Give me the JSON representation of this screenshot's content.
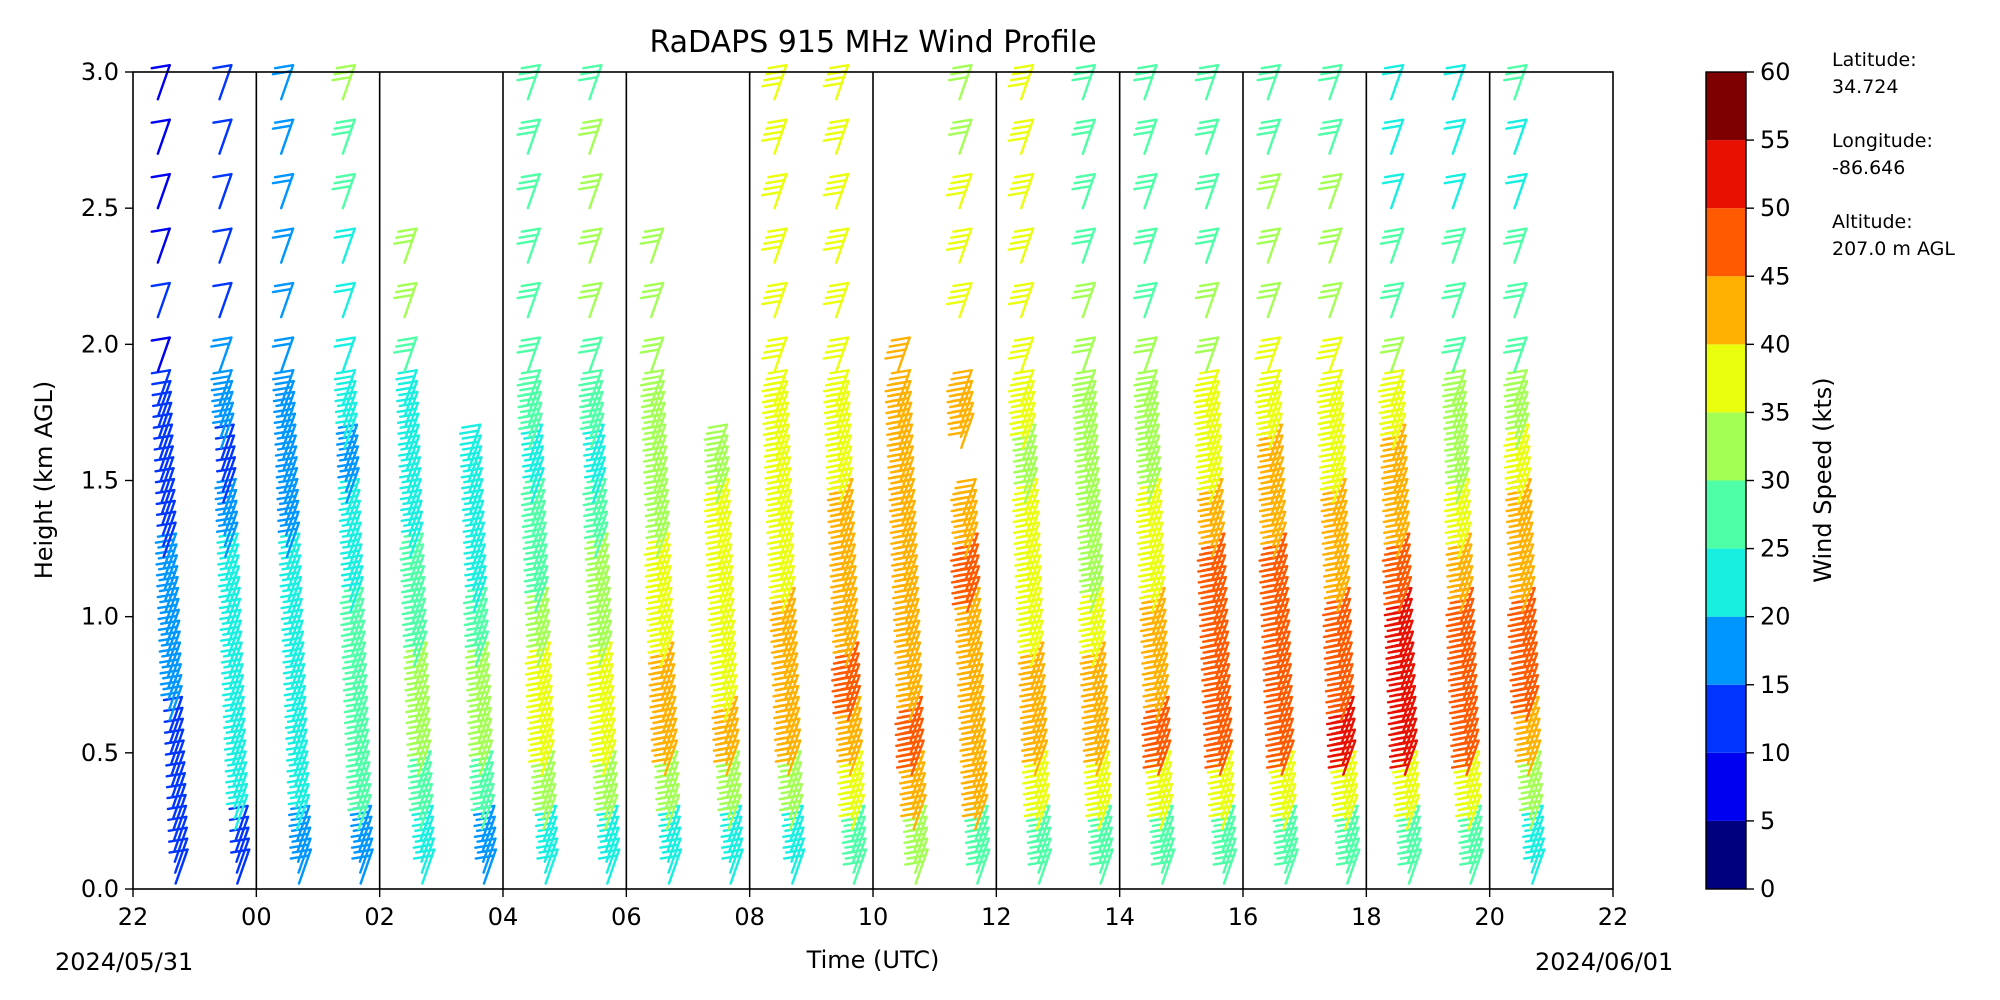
{
  "chart_data": {
    "type": "wind-barb profile",
    "title": "RaDAPS 915 MHz Wind Profile",
    "xlabel": "Time (UTC)",
    "ylabel": "Height (km AGL)",
    "x_ticks": [
      "22",
      "00",
      "02",
      "04",
      "06",
      "08",
      "10",
      "12",
      "14",
      "16",
      "18",
      "20",
      "22"
    ],
    "x_hours_from_start": [
      0,
      2,
      4,
      6,
      8,
      10,
      12,
      14,
      16,
      18,
      20,
      22,
      24
    ],
    "start_date": "2024/05/31",
    "end_date": "2024/06/01",
    "ylim": [
      0.0,
      3.0
    ],
    "y_ticks": [
      "0.0",
      "0.5",
      "1.0",
      "1.5",
      "2.0",
      "2.5",
      "3.0"
    ],
    "colorbar": {
      "label": "Wind Speed (kts)",
      "ticks": [
        "0",
        "5",
        "10",
        "15",
        "20",
        "25",
        "30",
        "35",
        "40",
        "45",
        "50",
        "55",
        "60"
      ],
      "colors": [
        "#00007f",
        "#0000f1",
        "#004cff",
        "#0094ff",
        "#29ffce",
        "#29ffce",
        "#7dff7a",
        "#cbff2c",
        "#ffd500",
        "#ff8c00",
        "#ff4800",
        "#e50000",
        "#7f0000"
      ],
      "bin_colors": [
        "#00007f",
        "#0000f1",
        "#0035ff",
        "#0096ff",
        "#18efe0",
        "#4fffa8",
        "#a3ff54",
        "#eaff0d",
        "#ffb000",
        "#ff5a00",
        "#e81000",
        "#7f0000"
      ]
    },
    "profile_hours": [
      0.5,
      1.5,
      2.5,
      3.5,
      4.5,
      5.5,
      6.5,
      7.5,
      8.5,
      9.5,
      10.5,
      11.5,
      12.5,
      13.5,
      14.5,
      15.5,
      16.5,
      17.5,
      18.5,
      19.5,
      20.5,
      21.5,
      22.5
    ],
    "profile_heights_km": [
      0.1,
      0.3,
      0.5,
      0.7,
      0.9,
      1.1,
      1.3,
      1.5,
      1.7,
      1.9,
      2.1,
      2.3,
      2.5,
      2.7,
      2.9
    ],
    "wind_speed_kts": [
      [
        10,
        12,
        14,
        16,
        17,
        16,
        14,
        12,
        10,
        8,
        10,
        9,
        8,
        8,
        9
      ],
      [
        14,
        20,
        22,
        23,
        22,
        20,
        18,
        14,
        16,
        15,
        14,
        14,
        12,
        12,
        13
      ],
      [
        17,
        22,
        24,
        23,
        21,
        20,
        18,
        16,
        17,
        16,
        17,
        17,
        17,
        18,
        18
      ],
      [
        18,
        25,
        27,
        27,
        26,
        22,
        20,
        19,
        21,
        22,
        24,
        24,
        26,
        28,
        30
      ],
      [
        20,
        28,
        31,
        31,
        28,
        25,
        23,
        21,
        24,
        28,
        30,
        32,
        0,
        0,
        0
      ],
      [
        19,
        28,
        33,
        32,
        28,
        24,
        23,
        22,
        0,
        0,
        0,
        0,
        0,
        0,
        0
      ],
      [
        20,
        30,
        37,
        36,
        32,
        28,
        25,
        24,
        26,
        28,
        28,
        29,
        28,
        27,
        26
      ],
      [
        22,
        33,
        37,
        36,
        33,
        30,
        28,
        24,
        26,
        29,
        32,
        33,
        32,
        30,
        27
      ],
      [
        22,
        33,
        43,
        42,
        38,
        36,
        34,
        32,
        30,
        31,
        32,
        33,
        0,
        0,
        0
      ],
      [
        22,
        34,
        40,
        38,
        37,
        36,
        35,
        34,
        0,
        0,
        0,
        0,
        0,
        0,
        0
      ],
      [
        24,
        34,
        41,
        44,
        42,
        39,
        37,
        36,
        37,
        38,
        38,
        38,
        38,
        38,
        37
      ],
      [
        26,
        37,
        41,
        45,
        44,
        42,
        40,
        38,
        38,
        38,
        38,
        38,
        38,
        38,
        38
      ],
      [
        30,
        40,
        45,
        44,
        43,
        42,
        44,
        44,
        43,
        42,
        0,
        0,
        0,
        0,
        0
      ],
      [
        25,
        40,
        44,
        44,
        44,
        45,
        44,
        0,
        42,
        0,
        37,
        36,
        35,
        34,
        33
      ],
      [
        26,
        38,
        42,
        40,
        38,
        36,
        35,
        34,
        35,
        36,
        36,
        36,
        36,
        37,
        37
      ],
      [
        26,
        36,
        44,
        40,
        36,
        33,
        33,
        33,
        33,
        31,
        30,
        29,
        28,
        27,
        28
      ],
      [
        27,
        37,
        47,
        44,
        40,
        37,
        35,
        33,
        32,
        30,
        28,
        27,
        25,
        25,
        26
      ],
      [
        26,
        38,
        48,
        49,
        47,
        45,
        43,
        38,
        35,
        33,
        31,
        29,
        27,
        27,
        27
      ],
      [
        28,
        38,
        48,
        49,
        48,
        45,
        42,
        40,
        38,
        36,
        34,
        32,
        30,
        28,
        27
      ],
      [
        27,
        38,
        50,
        47,
        45,
        43,
        41,
        39,
        37,
        35,
        33,
        31,
        30,
        29,
        29
      ],
      [
        26,
        38,
        50,
        53,
        50,
        47,
        44,
        40,
        36,
        32,
        28,
        26,
        24,
        23,
        22
      ],
      [
        28,
        36,
        45,
        48,
        45,
        40,
        37,
        34,
        31,
        29,
        27,
        26,
        24,
        24,
        24
      ],
      [
        24,
        34,
        42,
        48,
        46,
        44,
        40,
        36,
        32,
        28,
        26,
        25,
        24,
        24,
        25
      ]
    ],
    "info": {
      "latitude_label": "Latitude:",
      "latitude": "34.724",
      "longitude_label": "Longitude:",
      "longitude": "-86.646",
      "altitude_label": "Altitude:",
      "altitude": "207.0 m AGL"
    }
  }
}
